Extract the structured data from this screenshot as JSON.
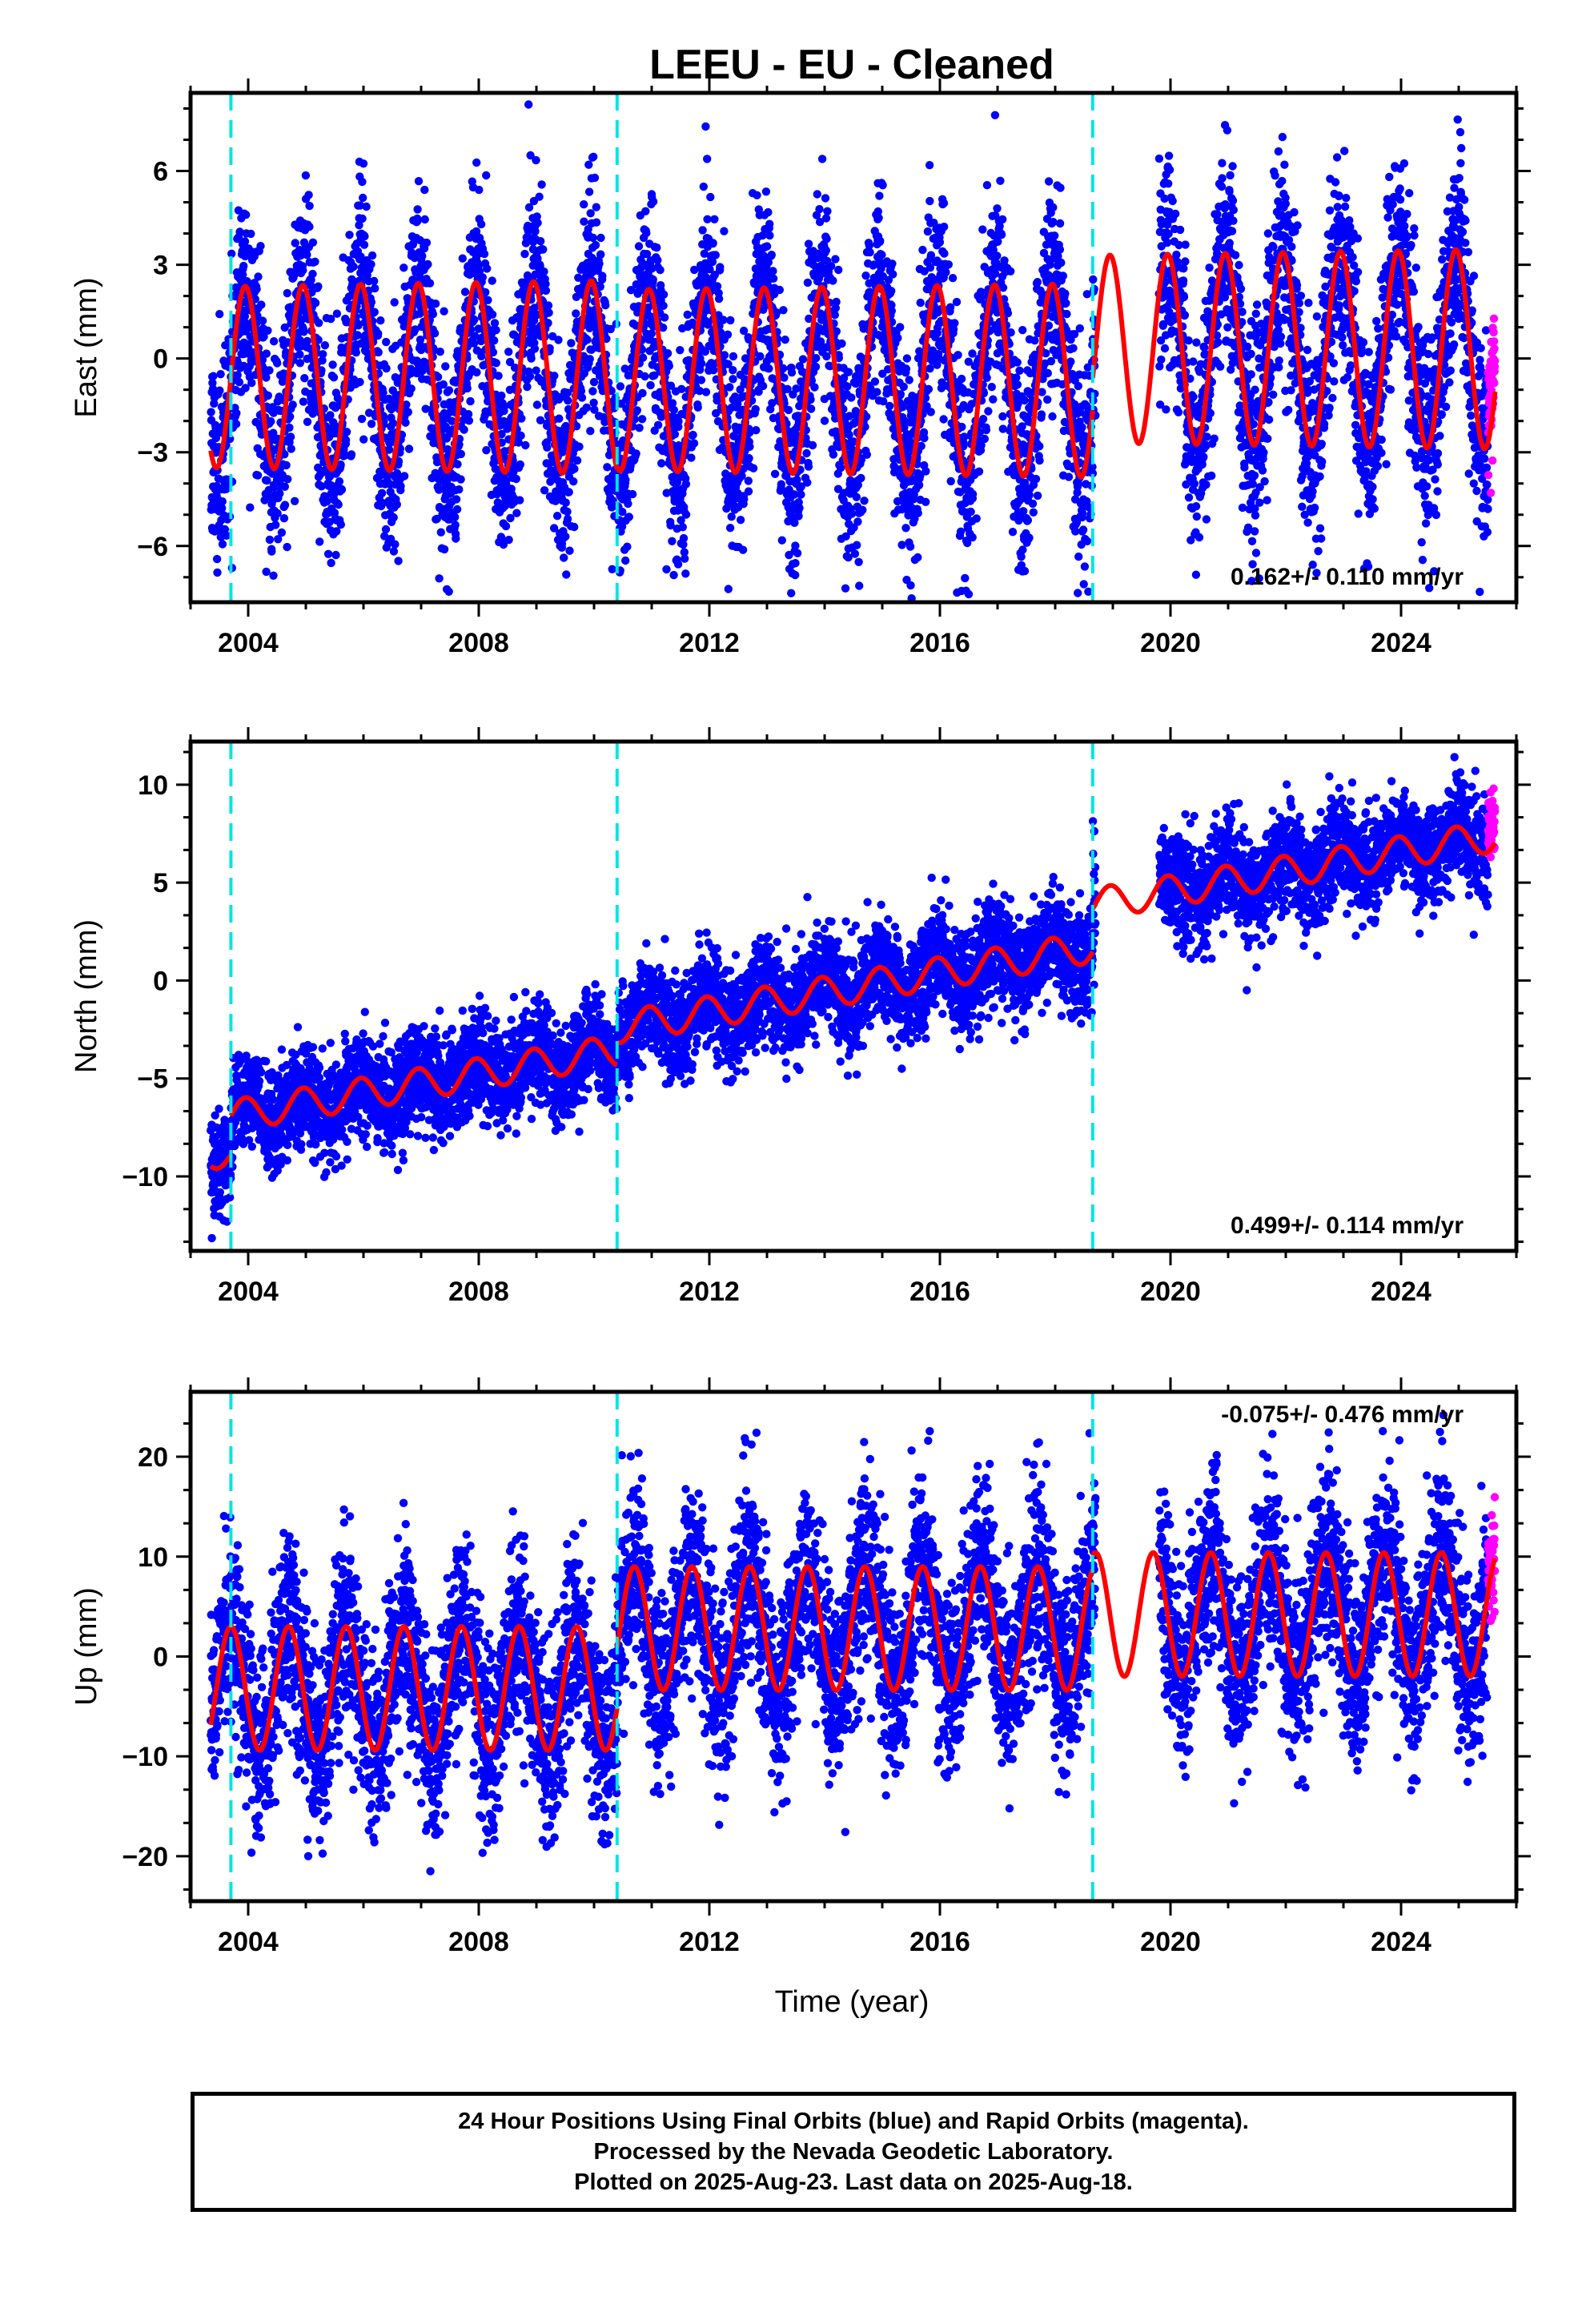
{
  "title": "LEEU  - EU - Cleaned",
  "xlabel": "Time (year)",
  "footer": {
    "line1": "24 Hour Positions Using Final Orbits (blue) and Rapid Orbits (magenta).",
    "line2": "Processed by the Nevada Geodetic Laboratory.",
    "line3": "Plotted on 2025-Aug-23. Last data on 2025-Aug-18."
  },
  "colors": {
    "final_orbits": "#0000ff",
    "rapid_orbits": "#ff00ff",
    "model": "#ff0000",
    "breaks": "#00e5e5"
  },
  "chart_data": [
    {
      "type": "scatter",
      "component": "east",
      "ylabel": "East (mm)",
      "xlim": [
        2003.0,
        2026.0
      ],
      "ylim": [
        -7.8,
        8.5
      ],
      "xticks": [
        2004,
        2008,
        2012,
        2016,
        2020,
        2024
      ],
      "yticks": [
        -6,
        -3,
        0,
        3,
        6
      ],
      "rate_label": "0.162+/- 0.110 mm/yr",
      "rate_position": "bottom-right",
      "breaks": [
        2003.7,
        2010.4,
        2018.65
      ],
      "data_span": [
        2003.35,
        2025.63
      ],
      "rapid_span": [
        2025.4,
        2025.63
      ],
      "gap": [
        2018.7,
        2019.8
      ],
      "model": {
        "segments": [
          {
            "x0": 2003.35,
            "x1": 2010.4,
            "offset": -0.6,
            "trend": 0.0,
            "amp_start": 2.9,
            "amp_end": 3.1
          },
          {
            "x0": 2010.4,
            "x1": 2018.65,
            "offset": -0.7,
            "trend": 0.0,
            "amp_start": 2.9,
            "amp_end": 3.1
          },
          {
            "x0": 2018.65,
            "x1": 2025.63,
            "offset": 0.3,
            "trend": 0.0,
            "amp_start": 3.0,
            "amp_end": 3.2
          }
        ],
        "phase": 0.3
      },
      "scatter_sd": 1.6
    },
    {
      "type": "scatter",
      "component": "north",
      "ylabel": "North (mm)",
      "xlim": [
        2003.0,
        2026.0
      ],
      "ylim": [
        -13.8,
        12.2
      ],
      "xticks": [
        2004,
        2008,
        2012,
        2016,
        2020,
        2024
      ],
      "yticks": [
        -10,
        -5,
        0,
        5,
        10
      ],
      "rate_label": "0.499+/- 0.114 mm/yr",
      "rate_position": "bottom-right",
      "breaks": [
        2003.7,
        2010.4,
        2018.65
      ],
      "data_span": [
        2003.35,
        2025.63
      ],
      "rapid_span": [
        2025.4,
        2025.63
      ],
      "gap": [
        2018.7,
        2019.8
      ],
      "model": {
        "segments": [
          {
            "x0": 2003.35,
            "x1": 2003.7,
            "offset": -8.9,
            "trend": 0.0,
            "amp_start": 0.7,
            "amp_end": 0.7
          },
          {
            "x0": 2003.7,
            "x1": 2010.4,
            "offset": -6.9,
            "trend": 0.499,
            "amp_start": 0.8,
            "amp_end": 0.8
          },
          {
            "x0": 2010.4,
            "x1": 2018.65,
            "offset": -2.4,
            "trend": 0.499,
            "amp_start": 0.8,
            "amp_end": 0.8
          },
          {
            "x0": 2018.65,
            "x1": 2025.63,
            "offset": 3.9,
            "trend": 0.499,
            "amp_start": 0.8,
            "amp_end": 0.8
          }
        ],
        "phase": 0.3
      },
      "scatter_sd": 1.3
    },
    {
      "type": "scatter",
      "component": "up",
      "ylabel": "Up (mm)",
      "xlim": [
        2003.0,
        2026.0
      ],
      "ylim": [
        -24.5,
        26.5
      ],
      "xticks": [
        2004,
        2008,
        2012,
        2016,
        2020,
        2024
      ],
      "yticks": [
        -20,
        -10,
        0,
        10,
        20
      ],
      "rate_label": "-0.075+/- 0.476 mm/yr",
      "rate_position": "top-right",
      "breaks": [
        2003.7,
        2010.4,
        2018.65
      ],
      "data_span": [
        2003.35,
        2025.63
      ],
      "rapid_span": [
        2025.4,
        2025.63
      ],
      "gap": [
        2018.7,
        2019.8
      ],
      "model": {
        "segments": [
          {
            "x0": 2003.35,
            "x1": 2010.4,
            "offset": -3.2,
            "trend": 0.0,
            "amp_start": 6.2,
            "amp_end": 6.2
          },
          {
            "x0": 2010.4,
            "x1": 2018.65,
            "offset": 2.8,
            "trend": 0.0,
            "amp_start": 6.2,
            "amp_end": 6.2
          },
          {
            "x0": 2018.65,
            "x1": 2025.63,
            "offset": 4.2,
            "trend": 0.0,
            "amp_start": 6.2,
            "amp_end": 6.2
          }
        ],
        "phase": 0.55
      },
      "scatter_sd": 4.8
    }
  ]
}
